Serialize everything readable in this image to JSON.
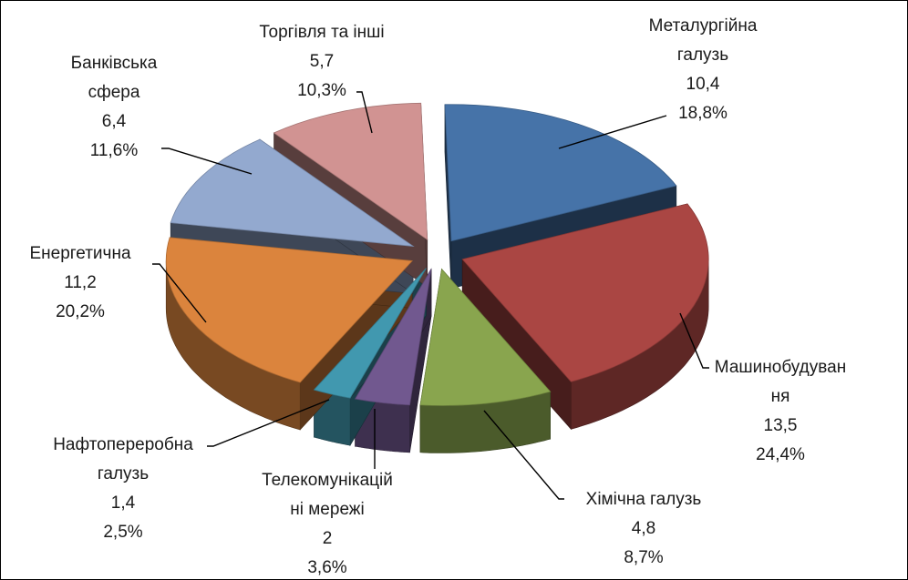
{
  "chart_data": {
    "type": "pie",
    "style": "3d-exploded",
    "slices": [
      {
        "label": "Металургійна\nгалузь",
        "value": 10.4,
        "percent": "18,8%",
        "display_value": "10,4",
        "color": "#4673A8"
      },
      {
        "label": "Машинобудуван\nня",
        "value": 13.5,
        "percent": "24,4%",
        "display_value": "13,5",
        "color": "#AA4643"
      },
      {
        "label": "Хімічна галузь",
        "value": 4.8,
        "percent": "8,7%",
        "display_value": "4,8",
        "color": "#89A54E"
      },
      {
        "label": "Телекомунікацій\nні мережі",
        "value": 2,
        "percent": "3,6%",
        "display_value": "2",
        "color": "#71588F"
      },
      {
        "label": "Нафтопереробна\nгалузь",
        "value": 1.4,
        "percent": "2,5%",
        "display_value": "1,4",
        "color": "#4198AF"
      },
      {
        "label": "Енергетична",
        "value": 11.2,
        "percent": "20,2%",
        "display_value": "11,2",
        "color": "#DB843D"
      },
      {
        "label": "Банківська\nсфера",
        "value": 6.4,
        "percent": "11,6%",
        "display_value": "6,4",
        "color": "#93A9CF"
      },
      {
        "label": "Торгівля та інші",
        "value": 5.7,
        "percent": "10,3%",
        "display_value": "5,7",
        "color": "#D19392"
      }
    ]
  }
}
